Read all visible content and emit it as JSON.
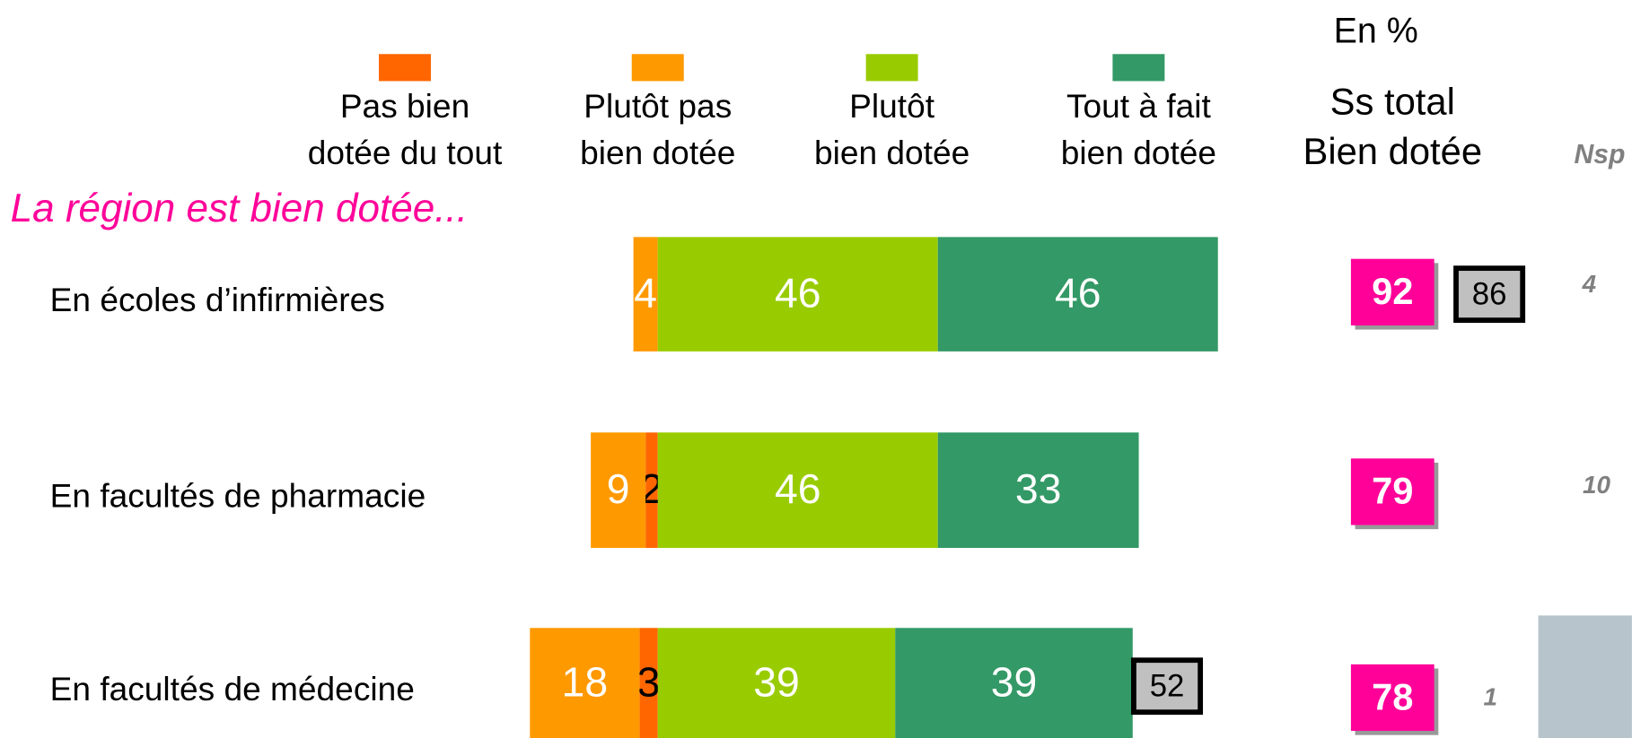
{
  "chart_data": {
    "type": "diverging-bar",
    "unit_note": "En %",
    "subtitle": "La région est bien dotée...",
    "categories": [
      "En écoles d’infirmières",
      "En facultés de pharmacie",
      "En facultés de médecine"
    ],
    "series": [
      {
        "name": "Pas bien\ndotée du tout",
        "color": "#ff6600",
        "side": "negative",
        "values": [
          null,
          2,
          3
        ]
      },
      {
        "name": "Plutôt pas\nbien dotée",
        "color": "#ff9900",
        "side": "negative",
        "values": [
          4,
          9,
          18
        ]
      },
      {
        "name": "Plutôt\nbien dotée",
        "color": "#99cc00",
        "side": "positive",
        "values": [
          46,
          46,
          39
        ]
      },
      {
        "name": "Tout à fait\nbien dotée",
        "color": "#339966",
        "side": "positive",
        "values": [
          46,
          33,
          39
        ]
      }
    ],
    "subtotal": {
      "title": "Ss total\nBien dotée",
      "color": "#ff0099",
      "values": [
        92,
        79,
        78
      ]
    },
    "comparison": {
      "values": [
        86,
        null,
        52
      ]
    },
    "nsp": {
      "title": "Nsp",
      "values": [
        4,
        10,
        1
      ]
    }
  }
}
